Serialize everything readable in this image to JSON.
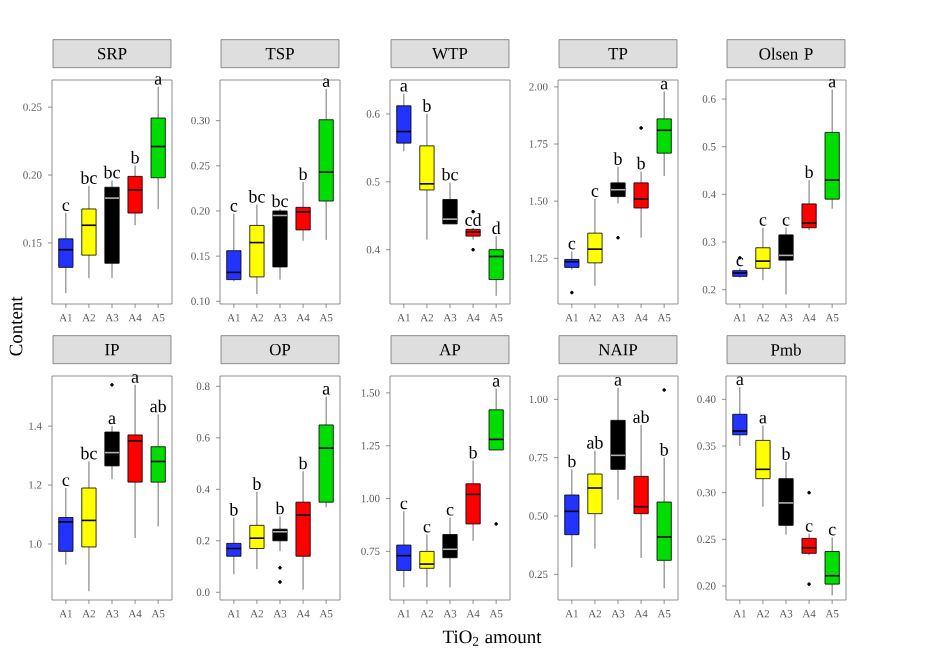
{
  "chart_data": [
    {
      "type": "box",
      "title": "SRP",
      "ylabel": "Content",
      "categories": [
        "A1",
        "A2",
        "A3",
        "A4",
        "A5"
      ],
      "colors": [
        "#2233ff",
        "#ffff00",
        "#000000",
        "#ff0000",
        "#00dd00"
      ],
      "ylim": [
        0.105,
        0.27
      ],
      "yticks": [
        0.15,
        {
          "value": 0.2,
          "label": "0.20"
        },
        0.25
      ],
      "boxes": [
        {
          "low": 0.113,
          "q1": 0.132,
          "median": 0.145,
          "q3": 0.153,
          "high": 0.172
        },
        {
          "low": 0.124,
          "q1": 0.141,
          "median": 0.163,
          "q3": 0.175,
          "high": 0.192
        },
        {
          "low": 0.124,
          "q1": 0.135,
          "median": 0.183,
          "q3": 0.191,
          "high": 0.196
        },
        {
          "low": 0.163,
          "q1": 0.172,
          "median": 0.189,
          "q3": 0.199,
          "high": 0.207
        },
        {
          "low": 0.175,
          "q1": 0.198,
          "median": 0.221,
          "q3": 0.242,
          "high": 0.265
        }
      ],
      "annotations": [
        "c",
        "bc",
        "bc",
        "b",
        "a"
      ]
    },
    {
      "type": "box",
      "title": "TSP",
      "categories": [
        "A1",
        "A2",
        "A3",
        "A4",
        "A5"
      ],
      "colors": [
        "#2233ff",
        "#ffff00",
        "#000000",
        "#ff0000",
        "#00dd00"
      ],
      "ylim": [
        0.097,
        0.345
      ],
      "yticks": [
        {
          "value": 0.1,
          "label": "0.10"
        },
        0.15,
        {
          "value": 0.2,
          "label": "0.20"
        },
        0.25,
        {
          "value": 0.3,
          "label": "0.30"
        }
      ],
      "boxes": [
        {
          "low": 0.122,
          "q1": 0.124,
          "median": 0.132,
          "q3": 0.156,
          "high": 0.197
        },
        {
          "low": 0.108,
          "q1": 0.127,
          "median": 0.165,
          "q3": 0.184,
          "high": 0.207
        },
        {
          "low": 0.124,
          "q1": 0.138,
          "median": 0.195,
          "q3": 0.2,
          "high": 0.202
        },
        {
          "low": 0.167,
          "q1": 0.179,
          "median": 0.199,
          "q3": 0.204,
          "high": 0.232
        },
        {
          "low": 0.168,
          "q1": 0.211,
          "median": 0.243,
          "q3": 0.301,
          "high": 0.335
        }
      ],
      "annotations": [
        "c",
        "bc",
        "bc",
        "b",
        "a"
      ]
    },
    {
      "type": "box",
      "title": "WTP",
      "categories": [
        "A1",
        "A2",
        "A3",
        "A4",
        "A5"
      ],
      "colors": [
        "#2233ff",
        "#ffff00",
        "#000000",
        "#ff0000",
        "#00dd00"
      ],
      "ylim": [
        0.32,
        0.65
      ],
      "yticks": [
        0.4,
        0.5,
        0.6
      ],
      "boxes": [
        {
          "low": 0.545,
          "q1": 0.557,
          "median": 0.574,
          "q3": 0.612,
          "high": 0.63
        },
        {
          "low": 0.415,
          "q1": 0.488,
          "median": 0.497,
          "q3": 0.553,
          "high": 0.6
        },
        {
          "low": 0.438,
          "q1": 0.438,
          "median": 0.445,
          "q3": 0.474,
          "high": 0.499
        },
        {
          "low": 0.415,
          "q1": 0.42,
          "median": 0.426,
          "q3": 0.43,
          "high": 0.432,
          "outliers": [
            0.456,
            0.4
          ]
        },
        {
          "low": 0.332,
          "q1": 0.356,
          "median": 0.39,
          "q3": 0.4,
          "high": 0.42
        }
      ],
      "annotations": [
        "a",
        "b",
        "bc",
        "cd",
        "d"
      ]
    },
    {
      "type": "box",
      "title": "TP",
      "categories": [
        "A1",
        "A2",
        "A3",
        "A4",
        "A5"
      ],
      "colors": [
        "#2233ff",
        "#ffff00",
        "#000000",
        "#ff0000",
        "#00dd00"
      ],
      "ylim": [
        1.05,
        2.03
      ],
      "yticks": [
        1.25,
        {
          "value": 1.5,
          "label": "1.50"
        },
        1.75,
        {
          "value": 2,
          "label": "2.00"
        }
      ],
      "boxes": [
        {
          "low": 1.2,
          "q1": 1.21,
          "median": 1.235,
          "q3": 1.245,
          "high": 1.28,
          "outliers": [
            1.1
          ]
        },
        {
          "low": 1.13,
          "q1": 1.23,
          "median": 1.29,
          "q3": 1.36,
          "high": 1.51
        },
        {
          "low": 1.49,
          "q1": 1.52,
          "median": 1.55,
          "q3": 1.58,
          "high": 1.65,
          "outliers": [
            1.34
          ]
        },
        {
          "low": 1.34,
          "q1": 1.47,
          "median": 1.51,
          "q3": 1.58,
          "high": 1.63,
          "outliers": [
            1.82
          ]
        },
        {
          "low": 1.61,
          "q1": 1.71,
          "median": 1.81,
          "q3": 1.86,
          "high": 1.98
        }
      ],
      "annotations": [
        "c",
        "c",
        "b",
        "b",
        "a"
      ]
    },
    {
      "type": "box",
      "title": "Olsen P",
      "categories": [
        "A1",
        "A2",
        "A3",
        "A4",
        "A5"
      ],
      "colors": [
        "#2233ff",
        "#ffff00",
        "#000000",
        "#ff0000",
        "#00dd00"
      ],
      "ylim": [
        0.17,
        0.64
      ],
      "yticks": [
        0.2,
        0.3,
        0.4,
        0.5,
        0.6
      ],
      "boxes": [
        {
          "low": 0.225,
          "q1": 0.228,
          "median": 0.235,
          "q3": 0.24,
          "high": 0.245,
          "outliers": [
            0.267
          ]
        },
        {
          "low": 0.22,
          "q1": 0.245,
          "median": 0.26,
          "q3": 0.288,
          "high": 0.33
        },
        {
          "low": 0.19,
          "q1": 0.262,
          "median": 0.272,
          "q3": 0.315,
          "high": 0.33
        },
        {
          "low": 0.325,
          "q1": 0.33,
          "median": 0.34,
          "q3": 0.38,
          "high": 0.43
        },
        {
          "low": 0.37,
          "q1": 0.39,
          "median": 0.43,
          "q3": 0.53,
          "high": 0.62
        }
      ],
      "annotations": [
        "c",
        "c",
        "c",
        "b",
        "a"
      ]
    },
    {
      "type": "box",
      "title": "IP",
      "categories": [
        "A1",
        "A2",
        "A3",
        "A4",
        "A5"
      ],
      "colors": [
        "#2233ff",
        "#ffff00",
        "#000000",
        "#ff0000",
        "#00dd00"
      ],
      "ylim": [
        0.81,
        1.57
      ],
      "yticks": [
        {
          "value": 1,
          "label": "1.0"
        },
        1.2,
        1.4
      ],
      "boxes": [
        {
          "low": 0.93,
          "q1": 0.975,
          "median": 1.075,
          "q3": 1.09,
          "high": 1.19
        },
        {
          "low": 0.84,
          "q1": 0.99,
          "median": 1.08,
          "q3": 1.19,
          "high": 1.28
        },
        {
          "low": 1.22,
          "q1": 1.265,
          "median": 1.31,
          "q3": 1.38,
          "high": 1.4,
          "outliers": [
            1.54
          ]
        },
        {
          "low": 1.02,
          "q1": 1.21,
          "median": 1.35,
          "q3": 1.37,
          "high": 1.54
        },
        {
          "low": 1.06,
          "q1": 1.21,
          "median": 1.28,
          "q3": 1.33,
          "high": 1.44
        }
      ],
      "annotations": [
        "c",
        "bc",
        "a",
        "a",
        "ab"
      ]
    },
    {
      "type": "box",
      "title": "OP",
      "categories": [
        "A1",
        "A2",
        "A3",
        "A4",
        "A5"
      ],
      "colors": [
        "#2233ff",
        "#ffff00",
        "#000000",
        "#ff0000",
        "#00dd00"
      ],
      "ylim": [
        -0.03,
        0.84
      ],
      "yticks": [
        {
          "value": 0,
          "label": "0.0"
        },
        0.2,
        0.4,
        0.6,
        0.8
      ],
      "boxes": [
        {
          "low": 0.07,
          "q1": 0.14,
          "median": 0.17,
          "q3": 0.19,
          "high": 0.29
        },
        {
          "low": 0.09,
          "q1": 0.17,
          "median": 0.21,
          "q3": 0.26,
          "high": 0.39
        },
        {
          "low": 0.16,
          "q1": 0.2,
          "median": 0.235,
          "q3": 0.245,
          "high": 0.295,
          "outliers": [
            0.095,
            0.04
          ]
        },
        {
          "low": 0.01,
          "q1": 0.14,
          "median": 0.3,
          "q3": 0.35,
          "high": 0.47
        },
        {
          "low": 0.33,
          "q1": 0.35,
          "median": 0.56,
          "q3": 0.65,
          "high": 0.76
        }
      ],
      "annotations": [
        "b",
        "b",
        "b",
        "b",
        "a"
      ]
    },
    {
      "type": "box",
      "title": "AP",
      "xlabel": "TiO$_{2}$ amount",
      "categories": [
        "A1",
        "A2",
        "A3",
        "A4",
        "A5"
      ],
      "colors": [
        "#2233ff",
        "#ffff00",
        "#000000",
        "#ff0000",
        "#00dd00"
      ],
      "ylim": [
        0.52,
        1.58
      ],
      "yticks": [
        0.75,
        {
          "value": 1,
          "label": "1.00"
        },
        1.25,
        {
          "value": 1.5,
          "label": "1.50"
        }
      ],
      "boxes": [
        {
          "low": 0.58,
          "q1": 0.66,
          "median": 0.73,
          "q3": 0.78,
          "high": 0.94
        },
        {
          "low": 0.58,
          "q1": 0.67,
          "median": 0.69,
          "q3": 0.75,
          "high": 0.83
        },
        {
          "low": 0.58,
          "q1": 0.72,
          "median": 0.76,
          "q3": 0.83,
          "high": 0.91
        },
        {
          "low": 0.8,
          "q1": 0.88,
          "median": 1.02,
          "q3": 1.07,
          "high": 1.18
        },
        {
          "low": 1.23,
          "q1": 1.23,
          "median": 1.28,
          "q3": 1.42,
          "high": 1.52,
          "outliers": [
            0.88
          ]
        }
      ],
      "annotations": [
        "c",
        "c",
        "c",
        "b",
        "a"
      ]
    },
    {
      "type": "box",
      "title": "NAIP",
      "categories": [
        "A1",
        "A2",
        "A3",
        "A4",
        "A5"
      ],
      "colors": [
        "#2233ff",
        "#ffff00",
        "#000000",
        "#ff0000",
        "#00dd00"
      ],
      "ylim": [
        0.14,
        1.1
      ],
      "yticks": [
        0.25,
        {
          "value": 0.5,
          "label": "0.50"
        },
        0.75,
        {
          "value": 1,
          "label": "1.00"
        }
      ],
      "boxes": [
        {
          "low": 0.28,
          "q1": 0.42,
          "median": 0.52,
          "q3": 0.59,
          "high": 0.7
        },
        {
          "low": 0.36,
          "q1": 0.51,
          "median": 0.62,
          "q3": 0.68,
          "high": 0.78
        },
        {
          "low": 0.57,
          "q1": 0.7,
          "median": 0.76,
          "q3": 0.91,
          "high": 1.05
        },
        {
          "low": 0.32,
          "q1": 0.51,
          "median": 0.54,
          "q3": 0.67,
          "high": 0.89
        },
        {
          "low": 0.19,
          "q1": 0.31,
          "median": 0.41,
          "q3": 0.56,
          "high": 0.75,
          "outliers": [
            1.04
          ]
        }
      ],
      "annotations": [
        "b",
        "ab",
        "a",
        "ab",
        "b"
      ]
    },
    {
      "type": "box",
      "title": "Pmb",
      "categories": [
        "A1",
        "A2",
        "A3",
        "A4",
        "A5"
      ],
      "colors": [
        "#2233ff",
        "#ffff00",
        "#000000",
        "#ff0000",
        "#00dd00"
      ],
      "ylim": [
        0.185,
        0.425
      ],
      "yticks": [
        {
          "value": 0.2,
          "label": "0.20"
        },
        0.25,
        {
          "value": 0.3,
          "label": "0.30"
        },
        0.35,
        {
          "value": 0.4,
          "label": "0.40"
        }
      ],
      "boxes": [
        {
          "low": 0.35,
          "q1": 0.362,
          "median": 0.366,
          "q3": 0.384,
          "high": 0.413
        },
        {
          "low": 0.285,
          "q1": 0.315,
          "median": 0.325,
          "q3": 0.356,
          "high": 0.372
        },
        {
          "low": 0.255,
          "q1": 0.265,
          "median": 0.289,
          "q3": 0.315,
          "high": 0.333
        },
        {
          "low": 0.233,
          "q1": 0.235,
          "median": 0.241,
          "q3": 0.251,
          "high": 0.256,
          "outliers": [
            0.3,
            0.202
          ]
        },
        {
          "low": 0.19,
          "q1": 0.202,
          "median": 0.211,
          "q3": 0.237,
          "high": 0.252
        }
      ],
      "annotations": [
        "a",
        "a",
        "b",
        "c",
        "c"
      ]
    }
  ]
}
